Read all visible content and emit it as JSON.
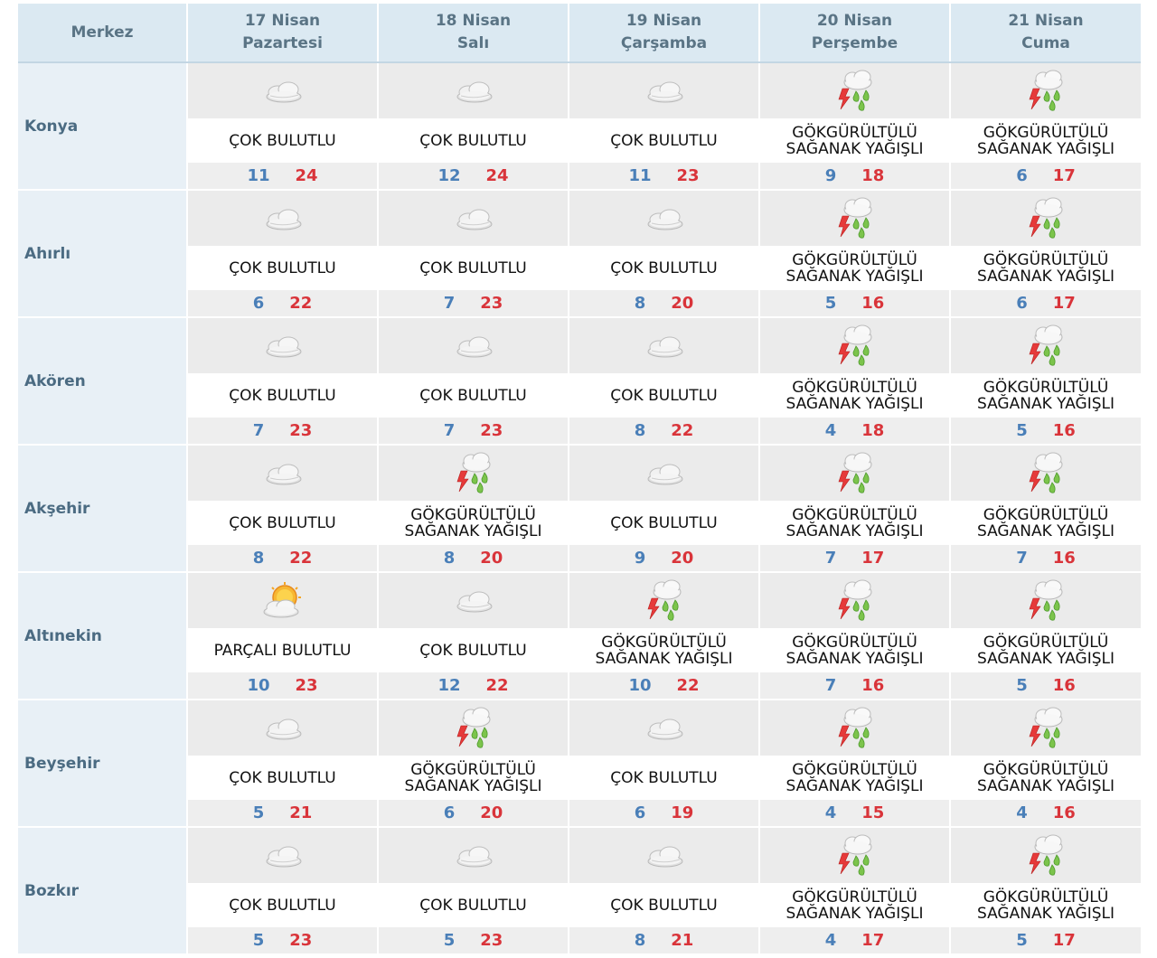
{
  "header": {
    "merkez_label": "Merkez",
    "days": [
      {
        "date": "17 Nisan",
        "weekday": "Pazartesi"
      },
      {
        "date": "18 Nisan",
        "weekday": "Salı"
      },
      {
        "date": "19 Nisan",
        "weekday": "Çarşamba"
      },
      {
        "date": "20 Nisan",
        "weekday": "Perşembe"
      },
      {
        "date": "21 Nisan",
        "weekday": "Cuma"
      }
    ]
  },
  "cities": [
    {
      "name": "Konya",
      "days": [
        {
          "icon": "cloudy-icon",
          "desc": [
            "ÇOK BULUTLU"
          ],
          "min": "11",
          "max": "24"
        },
        {
          "icon": "cloudy-icon",
          "desc": [
            "ÇOK BULUTLU"
          ],
          "min": "12",
          "max": "24"
        },
        {
          "icon": "cloudy-icon",
          "desc": [
            "ÇOK BULUTLU"
          ],
          "min": "11",
          "max": "23"
        },
        {
          "icon": "thunderstorm-icon",
          "desc": [
            "GÖKGÜRÜLTÜLÜ",
            "SAĞANAK YAĞIŞLI"
          ],
          "min": "9",
          "max": "18"
        },
        {
          "icon": "thunderstorm-icon",
          "desc": [
            "GÖKGÜRÜLTÜLÜ",
            "SAĞANAK YAĞIŞLI"
          ],
          "min": "6",
          "max": "17"
        }
      ]
    },
    {
      "name": "Ahırlı",
      "days": [
        {
          "icon": "cloudy-icon",
          "desc": [
            "ÇOK BULUTLU"
          ],
          "min": "6",
          "max": "22"
        },
        {
          "icon": "cloudy-icon",
          "desc": [
            "ÇOK BULUTLU"
          ],
          "min": "7",
          "max": "23"
        },
        {
          "icon": "cloudy-icon",
          "desc": [
            "ÇOK BULUTLU"
          ],
          "min": "8",
          "max": "20"
        },
        {
          "icon": "thunderstorm-icon",
          "desc": [
            "GÖKGÜRÜLTÜLÜ",
            "SAĞANAK YAĞIŞLI"
          ],
          "min": "5",
          "max": "16"
        },
        {
          "icon": "thunderstorm-icon",
          "desc": [
            "GÖKGÜRÜLTÜLÜ",
            "SAĞANAK YAĞIŞLI"
          ],
          "min": "6",
          "max": "17"
        }
      ]
    },
    {
      "name": "Akören",
      "days": [
        {
          "icon": "cloudy-icon",
          "desc": [
            "ÇOK BULUTLU"
          ],
          "min": "7",
          "max": "23"
        },
        {
          "icon": "cloudy-icon",
          "desc": [
            "ÇOK BULUTLU"
          ],
          "min": "7",
          "max": "23"
        },
        {
          "icon": "cloudy-icon",
          "desc": [
            "ÇOK BULUTLU"
          ],
          "min": "8",
          "max": "22"
        },
        {
          "icon": "thunderstorm-icon",
          "desc": [
            "GÖKGÜRÜLTÜLÜ",
            "SAĞANAK YAĞIŞLI"
          ],
          "min": "4",
          "max": "18"
        },
        {
          "icon": "thunderstorm-icon",
          "desc": [
            "GÖKGÜRÜLTÜLÜ",
            "SAĞANAK YAĞIŞLI"
          ],
          "min": "5",
          "max": "16"
        }
      ]
    },
    {
      "name": "Akşehir",
      "days": [
        {
          "icon": "cloudy-icon",
          "desc": [
            "ÇOK BULUTLU"
          ],
          "min": "8",
          "max": "22"
        },
        {
          "icon": "thunderstorm-icon",
          "desc": [
            "GÖKGÜRÜLTÜLÜ",
            "SAĞANAK YAĞIŞLI"
          ],
          "min": "8",
          "max": "20"
        },
        {
          "icon": "cloudy-icon",
          "desc": [
            "ÇOK BULUTLU"
          ],
          "min": "9",
          "max": "20"
        },
        {
          "icon": "thunderstorm-icon",
          "desc": [
            "GÖKGÜRÜLTÜLÜ",
            "SAĞANAK YAĞIŞLI"
          ],
          "min": "7",
          "max": "17"
        },
        {
          "icon": "thunderstorm-icon",
          "desc": [
            "GÖKGÜRÜLTÜLÜ",
            "SAĞANAK YAĞIŞLI"
          ],
          "min": "7",
          "max": "16"
        }
      ]
    },
    {
      "name": "Altınekin",
      "days": [
        {
          "icon": "partly-cloudy-icon",
          "desc": [
            "PARÇALI BULUTLU"
          ],
          "min": "10",
          "max": "23"
        },
        {
          "icon": "cloudy-icon",
          "desc": [
            "ÇOK BULUTLU"
          ],
          "min": "12",
          "max": "22"
        },
        {
          "icon": "thunderstorm-icon",
          "desc": [
            "GÖKGÜRÜLTÜLÜ",
            "SAĞANAK YAĞIŞLI"
          ],
          "min": "10",
          "max": "22"
        },
        {
          "icon": "thunderstorm-icon",
          "desc": [
            "GÖKGÜRÜLTÜLÜ",
            "SAĞANAK YAĞIŞLI"
          ],
          "min": "7",
          "max": "16"
        },
        {
          "icon": "thunderstorm-icon",
          "desc": [
            "GÖKGÜRÜLTÜLÜ",
            "SAĞANAK YAĞIŞLI"
          ],
          "min": "5",
          "max": "16"
        }
      ]
    },
    {
      "name": "Beyşehir",
      "days": [
        {
          "icon": "cloudy-icon",
          "desc": [
            "ÇOK BULUTLU"
          ],
          "min": "5",
          "max": "21"
        },
        {
          "icon": "thunderstorm-icon",
          "desc": [
            "GÖKGÜRÜLTÜLÜ",
            "SAĞANAK YAĞIŞLI"
          ],
          "min": "6",
          "max": "20"
        },
        {
          "icon": "cloudy-icon",
          "desc": [
            "ÇOK BULUTLU"
          ],
          "min": "6",
          "max": "19"
        },
        {
          "icon": "thunderstorm-icon",
          "desc": [
            "GÖKGÜRÜLTÜLÜ",
            "SAĞANAK YAĞIŞLI"
          ],
          "min": "4",
          "max": "15"
        },
        {
          "icon": "thunderstorm-icon",
          "desc": [
            "GÖKGÜRÜLTÜLÜ",
            "SAĞANAK YAĞIŞLI"
          ],
          "min": "4",
          "max": "16"
        }
      ]
    },
    {
      "name": "Bozkır",
      "days": [
        {
          "icon": "cloudy-icon",
          "desc": [
            "ÇOK BULUTLU"
          ],
          "min": "5",
          "max": "23"
        },
        {
          "icon": "cloudy-icon",
          "desc": [
            "ÇOK BULUTLU"
          ],
          "min": "5",
          "max": "23"
        },
        {
          "icon": "cloudy-icon",
          "desc": [
            "ÇOK BULUTLU"
          ],
          "min": "8",
          "max": "21"
        },
        {
          "icon": "thunderstorm-icon",
          "desc": [
            "GÖKGÜRÜLTÜLÜ",
            "SAĞANAK YAĞIŞLI"
          ],
          "min": "4",
          "max": "17"
        },
        {
          "icon": "thunderstorm-icon",
          "desc": [
            "GÖKGÜRÜLTÜLÜ",
            "SAĞANAK YAĞIŞLI"
          ],
          "min": "5",
          "max": "17"
        }
      ]
    }
  ]
}
